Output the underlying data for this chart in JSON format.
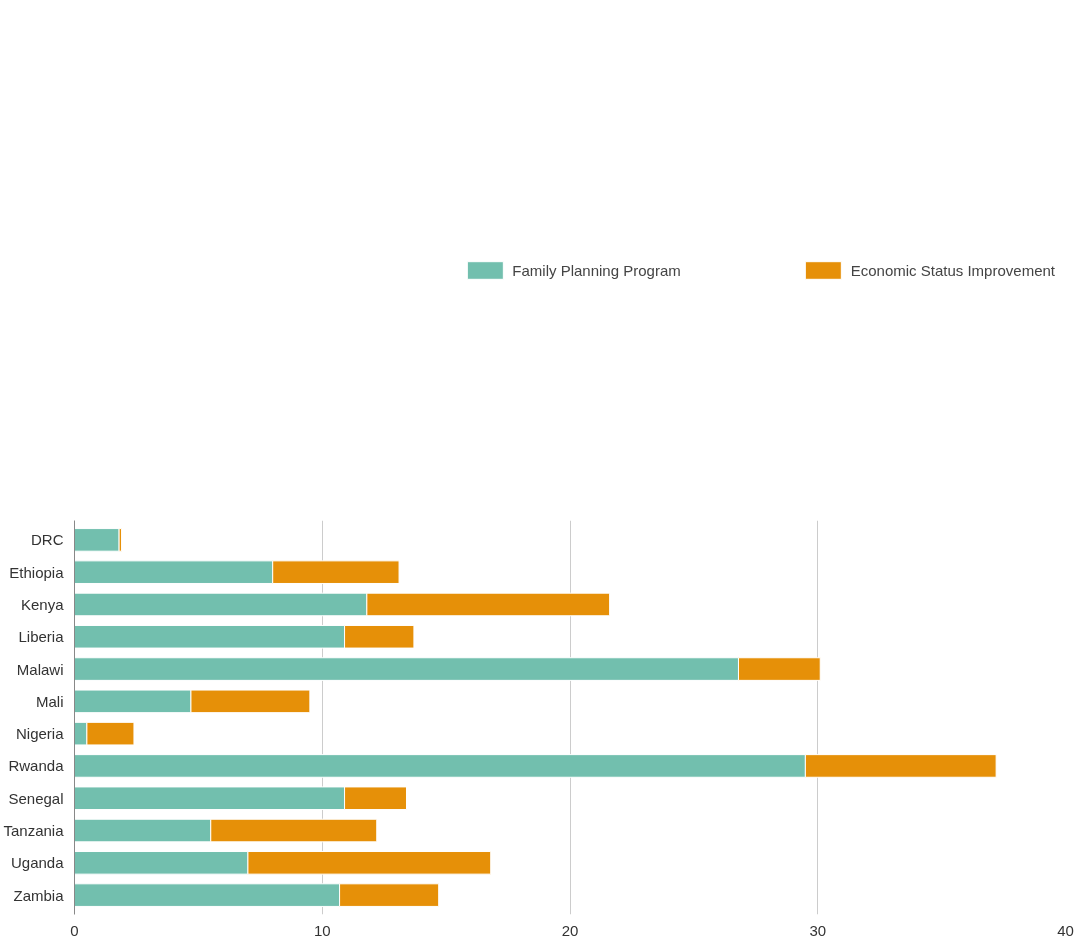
{
  "chart_data": {
    "type": "bar",
    "orientation": "horizontal",
    "stacked": true,
    "categories": [
      "DRC",
      "Ethiopia",
      "Kenya",
      "Liberia",
      "Malawi",
      "Mali",
      "Nigeria",
      "Rwanda",
      "Senegal",
      "Tanzania",
      "Uganda",
      "Zambia"
    ],
    "series": [
      {
        "name": "Family Planning Program",
        "color": "#72bfae",
        "values": [
          1.8,
          8.0,
          11.8,
          10.9,
          26.8,
          4.7,
          0.5,
          29.5,
          10.9,
          5.5,
          7.0,
          10.7
        ]
      },
      {
        "name": "Economic Status Improvement",
        "color": "#e69008",
        "values": [
          0.1,
          5.1,
          9.8,
          2.8,
          3.3,
          4.8,
          1.9,
          7.7,
          2.5,
          6.7,
          9.8,
          4.0
        ]
      }
    ],
    "xlim": [
      0,
      40
    ],
    "xticks": [
      0,
      10,
      20,
      30,
      40
    ],
    "grid": "x",
    "legend": "top"
  }
}
